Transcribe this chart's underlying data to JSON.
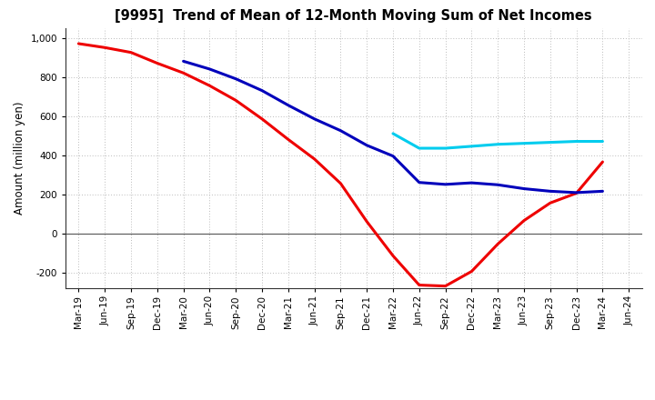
{
  "title": "[9995]  Trend of Mean of 12-Month Moving Sum of Net Incomes",
  "ylabel": "Amount (million yen)",
  "ylim": [
    -280,
    1050
  ],
  "yticks": [
    -200,
    0,
    200,
    400,
    600,
    800,
    1000
  ],
  "background_color": "#ffffff",
  "grid_color": "#bbbbbb",
  "x_labels": [
    "Mar-19",
    "Jun-19",
    "Sep-19",
    "Dec-19",
    "Mar-20",
    "Jun-20",
    "Sep-20",
    "Dec-20",
    "Mar-21",
    "Jun-21",
    "Sep-21",
    "Dec-21",
    "Mar-22",
    "Jun-22",
    "Sep-22",
    "Dec-22",
    "Mar-23",
    "Jun-23",
    "Sep-23",
    "Dec-23",
    "Mar-24",
    "Jun-24"
  ],
  "series": {
    "3 Years": {
      "color": "#ee0000",
      "values": [
        970,
        950,
        925,
        870,
        820,
        755,
        680,
        585,
        480,
        380,
        255,
        60,
        -115,
        -265,
        -270,
        -195,
        -55,
        65,
        155,
        205,
        365,
        null
      ]
    },
    "5 Years": {
      "color": "#0000bb",
      "values": [
        null,
        null,
        null,
        null,
        880,
        840,
        790,
        730,
        655,
        585,
        525,
        450,
        395,
        260,
        250,
        258,
        248,
        228,
        215,
        208,
        215,
        null
      ]
    },
    "7 Years": {
      "color": "#00ccee",
      "values": [
        null,
        null,
        null,
        null,
        null,
        null,
        null,
        null,
        null,
        null,
        null,
        null,
        510,
        435,
        435,
        445,
        455,
        460,
        465,
        470,
        470,
        null
      ]
    },
    "10 Years": {
      "color": "#00aa00",
      "values": [
        null,
        null,
        null,
        null,
        null,
        null,
        null,
        null,
        null,
        null,
        null,
        null,
        null,
        null,
        null,
        null,
        null,
        null,
        null,
        null,
        null,
        null
      ]
    }
  }
}
